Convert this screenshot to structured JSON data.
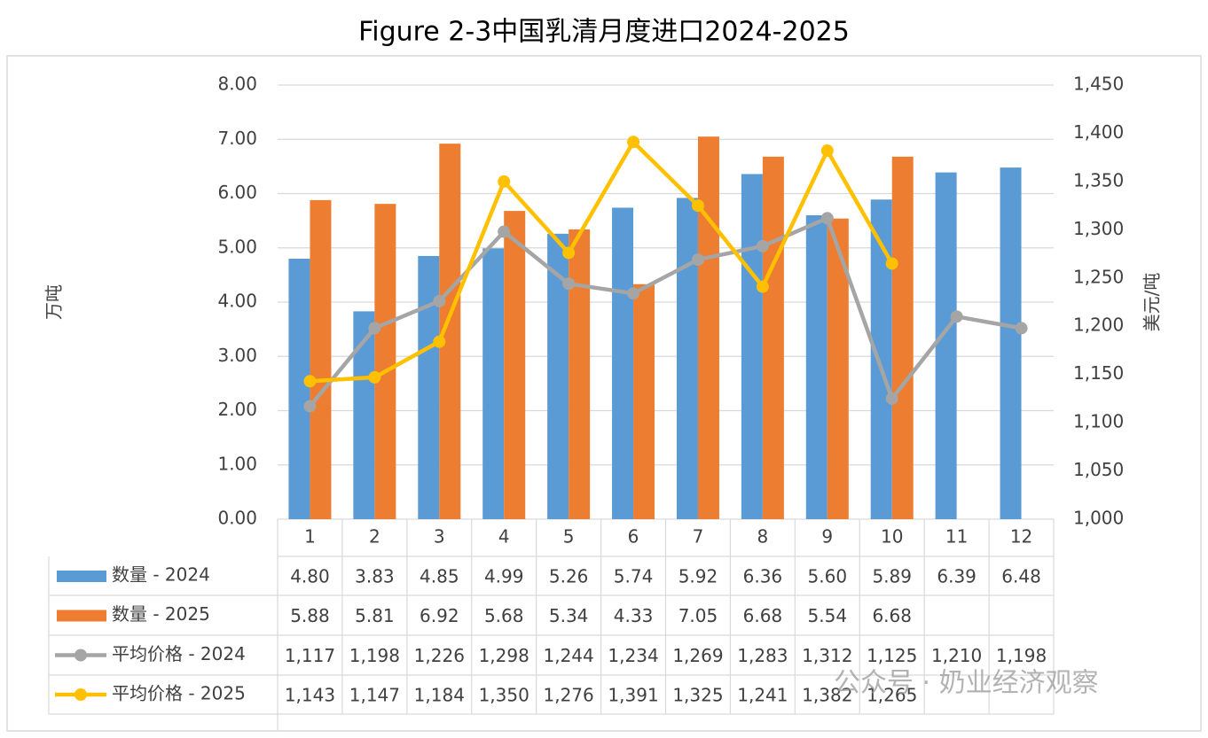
{
  "chart_data": {
    "type": "bar",
    "title": "Figure 2-3中国乳清月度进口2024-2025",
    "y_label": "万吨",
    "y2_label": "美元/吨",
    "categories": [
      "1",
      "2",
      "3",
      "4",
      "5",
      "6",
      "7",
      "8",
      "9",
      "10",
      "11",
      "12"
    ],
    "ylim": [
      0,
      8
    ],
    "yticks": [
      {
        "value": 0,
        "label": "0.00"
      },
      {
        "value": 1,
        "label": "1.00"
      },
      {
        "value": 2,
        "label": "2.00"
      },
      {
        "value": 3,
        "label": "3.00"
      },
      {
        "value": 4,
        "label": "4.00"
      },
      {
        "value": 5,
        "label": "5.00"
      },
      {
        "value": 6,
        "label": "6.00"
      },
      {
        "value": 7,
        "label": "7.00"
      },
      {
        "value": 8,
        "label": "8.00"
      }
    ],
    "y2lim": [
      1000,
      1450
    ],
    "y2ticks": [
      {
        "value": 1000,
        "label": "1,000"
      },
      {
        "value": 1050,
        "label": "1,050"
      },
      {
        "value": 1100,
        "label": "1,100"
      },
      {
        "value": 1150,
        "label": "1,150"
      },
      {
        "value": 1200,
        "label": "1,200"
      },
      {
        "value": 1250,
        "label": "1,250"
      },
      {
        "value": 1300,
        "label": "1,300"
      },
      {
        "value": 1350,
        "label": "1,350"
      },
      {
        "value": 1400,
        "label": "1,400"
      },
      {
        "value": 1450,
        "label": "1,450"
      }
    ],
    "grid": true,
    "series": [
      {
        "name": "数量 - 2024",
        "type": "bar",
        "color": "#5b9bd5",
        "values": [
          4.8,
          3.83,
          4.85,
          4.99,
          5.26,
          5.74,
          5.92,
          6.36,
          5.6,
          5.89,
          6.39,
          6.48
        ],
        "value_labels": [
          "4.80",
          "3.83",
          "4.85",
          "4.99",
          "5.26",
          "5.74",
          "5.92",
          "6.36",
          "5.60",
          "5.89",
          "6.39",
          "6.48"
        ]
      },
      {
        "name": "数量 - 2025",
        "type": "bar",
        "color": "#ed7d31",
        "values": [
          5.88,
          5.81,
          6.92,
          5.68,
          5.34,
          4.33,
          7.05,
          6.68,
          5.54,
          6.68,
          null,
          null
        ],
        "value_labels": [
          "5.88",
          "5.81",
          "6.92",
          "5.68",
          "5.34",
          "4.33",
          "7.05",
          "6.68",
          "5.54",
          "6.68",
          null,
          null
        ]
      },
      {
        "name": "平均价格 - 2024",
        "type": "line",
        "axis": "y2",
        "color": "#a5a5a5",
        "values": [
          1117,
          1198,
          1226,
          1298,
          1244,
          1234,
          1269,
          1283,
          1312,
          1125,
          1210,
          1198
        ],
        "value_labels": [
          "1,117",
          "1,198",
          "1,226",
          "1,298",
          "1,244",
          "1,234",
          "1,269",
          "1,283",
          "1,312",
          "1,125",
          "1,210",
          "1,198"
        ]
      },
      {
        "name": "平均价格 - 2025",
        "type": "line",
        "axis": "y2",
        "color": "#ffc000",
        "values": [
          1143,
          1147,
          1184,
          1350,
          1276,
          1391,
          1325,
          1241,
          1382,
          1265,
          null,
          null
        ],
        "value_labels": [
          "1,143",
          "1,147",
          "1,184",
          "1,350",
          "1,276",
          "1,391",
          "1,325",
          "1,241",
          "1,382",
          "1,265",
          null,
          null
        ]
      }
    ],
    "watermark": "公众号 · 奶业经济观察"
  }
}
